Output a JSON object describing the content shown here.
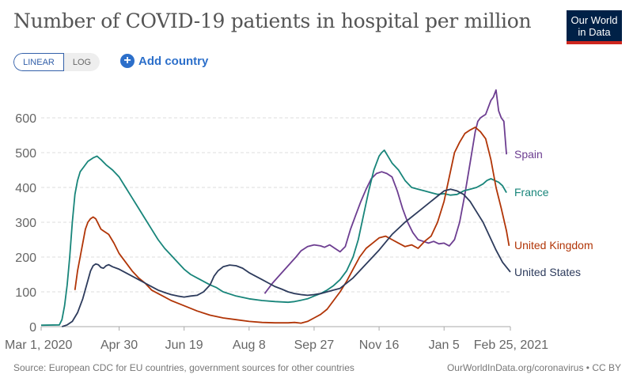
{
  "header": {
    "title": "Number of COVID-19 patients in hospital per million",
    "logo_line1": "Our World",
    "logo_line2": "in Data"
  },
  "controls": {
    "linear_label": "LINEAR",
    "log_label": "LOG",
    "add_country_label": "Add country",
    "add_icon": "+"
  },
  "footer": {
    "source": "Source: European CDC for EU countries, government sources for other countries",
    "link": "OurWorldInData.org/coronavirus • CC BY"
  },
  "colors": {
    "Spain": "#6d3e91",
    "France": "#18857a",
    "United Kingdom": "#b13507",
    "United States": "#2d3b5c"
  },
  "chart_data": {
    "type": "line",
    "title": "Number of COVID-19 patients in hospital per million",
    "xlabel": "",
    "ylabel": "",
    "x_unit": "days since Mar 1, 2020",
    "xlim": [
      0,
      361
    ],
    "ylim": [
      0,
      680
    ],
    "yticks": [
      0,
      100,
      200,
      300,
      400,
      500,
      600
    ],
    "xticks": [
      {
        "day": 0,
        "label": "Mar 1, 2020"
      },
      {
        "day": 60,
        "label": "Apr 30"
      },
      {
        "day": 110,
        "label": "Jun 19"
      },
      {
        "day": 160,
        "label": "Aug 8"
      },
      {
        "day": 210,
        "label": "Sep 27"
      },
      {
        "day": 260,
        "label": "Nov 16"
      },
      {
        "day": 310,
        "label": "Jan 5"
      },
      {
        "day": 361,
        "label": "Feb 25, 2021"
      }
    ],
    "grid": "horizontal-dashed",
    "legend": "right-end-labels",
    "series": [
      {
        "name": "Spain",
        "x": [
          172,
          178,
          184,
          190,
          196,
          200,
          205,
          210,
          215,
          218,
          222,
          226,
          230,
          234,
          238,
          242,
          246,
          250,
          254,
          258,
          262,
          266,
          270,
          274,
          278,
          282,
          286,
          290,
          294,
          298,
          302,
          306,
          310,
          314,
          318,
          322,
          326,
          330,
          334,
          336,
          338,
          340,
          342,
          344,
          346,
          348,
          350,
          352,
          354,
          356,
          358
        ],
        "values": [
          95,
          125,
          150,
          175,
          200,
          218,
          230,
          235,
          232,
          228,
          235,
          225,
          215,
          230,
          280,
          320,
          360,
          395,
          425,
          440,
          445,
          440,
          430,
          390,
          340,
          300,
          270,
          250,
          245,
          240,
          245,
          238,
          240,
          232,
          250,
          300,
          380,
          470,
          560,
          590,
          600,
          605,
          610,
          630,
          650,
          660,
          680,
          620,
          600,
          590,
          495
        ]
      },
      {
        "name": "France",
        "x": [
          0,
          14,
          16,
          18,
          20,
          22,
          24,
          26,
          28,
          30,
          33,
          36,
          40,
          43,
          46,
          50,
          55,
          60,
          65,
          70,
          75,
          80,
          85,
          90,
          95,
          100,
          105,
          110,
          115,
          120,
          125,
          130,
          135,
          140,
          150,
          160,
          170,
          180,
          190,
          195,
          200,
          205,
          210,
          215,
          220,
          225,
          230,
          235,
          240,
          244,
          248,
          252,
          256,
          258,
          260,
          262,
          264,
          266,
          270,
          275,
          280,
          285,
          290,
          295,
          300,
          305,
          310,
          315,
          320,
          325,
          330,
          335,
          340,
          343,
          346,
          349,
          352,
          355,
          358
        ],
        "values": [
          4,
          5,
          20,
          60,
          120,
          200,
          300,
          380,
          420,
          445,
          460,
          475,
          485,
          490,
          480,
          465,
          450,
          430,
          400,
          370,
          340,
          310,
          280,
          250,
          225,
          205,
          185,
          165,
          150,
          140,
          130,
          120,
          112,
          100,
          88,
          80,
          75,
          72,
          70,
          72,
          76,
          80,
          88,
          95,
          105,
          118,
          135,
          160,
          200,
          250,
          320,
          390,
          450,
          470,
          490,
          500,
          507,
          495,
          470,
          450,
          420,
          400,
          395,
          390,
          385,
          380,
          382,
          378,
          380,
          390,
          395,
          400,
          410,
          420,
          425,
          420,
          415,
          405,
          385
        ]
      },
      {
        "name": "United Kingdom",
        "x": [
          26,
          28,
          30,
          32,
          34,
          36,
          38,
          40,
          42,
          44,
          46,
          48,
          52,
          56,
          60,
          65,
          70,
          75,
          80,
          85,
          90,
          95,
          100,
          110,
          120,
          130,
          140,
          150,
          160,
          170,
          180,
          190,
          195,
          200,
          205,
          210,
          215,
          220,
          225,
          230,
          235,
          240,
          245,
          250,
          255,
          260,
          265,
          270,
          275,
          280,
          285,
          290,
          295,
          300,
          305,
          310,
          314,
          318,
          322,
          326,
          330,
          334,
          338,
          342,
          346,
          350,
          354,
          358,
          360
        ],
        "values": [
          105,
          160,
          200,
          240,
          280,
          300,
          310,
          315,
          310,
          295,
          280,
          275,
          265,
          240,
          210,
          185,
          160,
          140,
          125,
          105,
          95,
          85,
          75,
          60,
          45,
          33,
          25,
          20,
          15,
          12,
          11,
          11,
          12,
          10,
          15,
          25,
          35,
          50,
          75,
          100,
          130,
          165,
          200,
          225,
          240,
          255,
          260,
          250,
          240,
          230,
          235,
          225,
          245,
          260,
          300,
          360,
          430,
          500,
          530,
          555,
          565,
          573,
          560,
          540,
          480,
          400,
          340,
          275,
          232
        ]
      },
      {
        "name": "United States",
        "x": [
          16,
          20,
          24,
          28,
          32,
          35,
          38,
          40,
          42,
          44,
          46,
          48,
          50,
          52,
          55,
          60,
          65,
          70,
          75,
          80,
          85,
          90,
          95,
          100,
          105,
          110,
          115,
          120,
          125,
          130,
          133,
          136,
          140,
          145,
          150,
          155,
          160,
          165,
          170,
          175,
          180,
          185,
          190,
          195,
          200,
          205,
          210,
          215,
          220,
          225,
          230,
          240,
          250,
          260,
          270,
          280,
          290,
          300,
          305,
          310,
          315,
          320,
          325,
          330,
          335,
          340,
          345,
          350,
          355,
          361
        ],
        "values": [
          0,
          5,
          15,
          40,
          80,
          120,
          160,
          175,
          180,
          178,
          170,
          168,
          175,
          178,
          172,
          165,
          155,
          145,
          135,
          125,
          115,
          105,
          98,
          92,
          88,
          85,
          88,
          90,
          100,
          120,
          145,
          160,
          172,
          177,
          175,
          168,
          155,
          145,
          135,
          125,
          115,
          108,
          100,
          95,
          92,
          90,
          92,
          95,
          100,
          105,
          110,
          140,
          180,
          220,
          265,
          300,
          330,
          360,
          375,
          390,
          395,
          390,
          380,
          360,
          330,
          300,
          260,
          220,
          185,
          157
        ]
      }
    ]
  }
}
